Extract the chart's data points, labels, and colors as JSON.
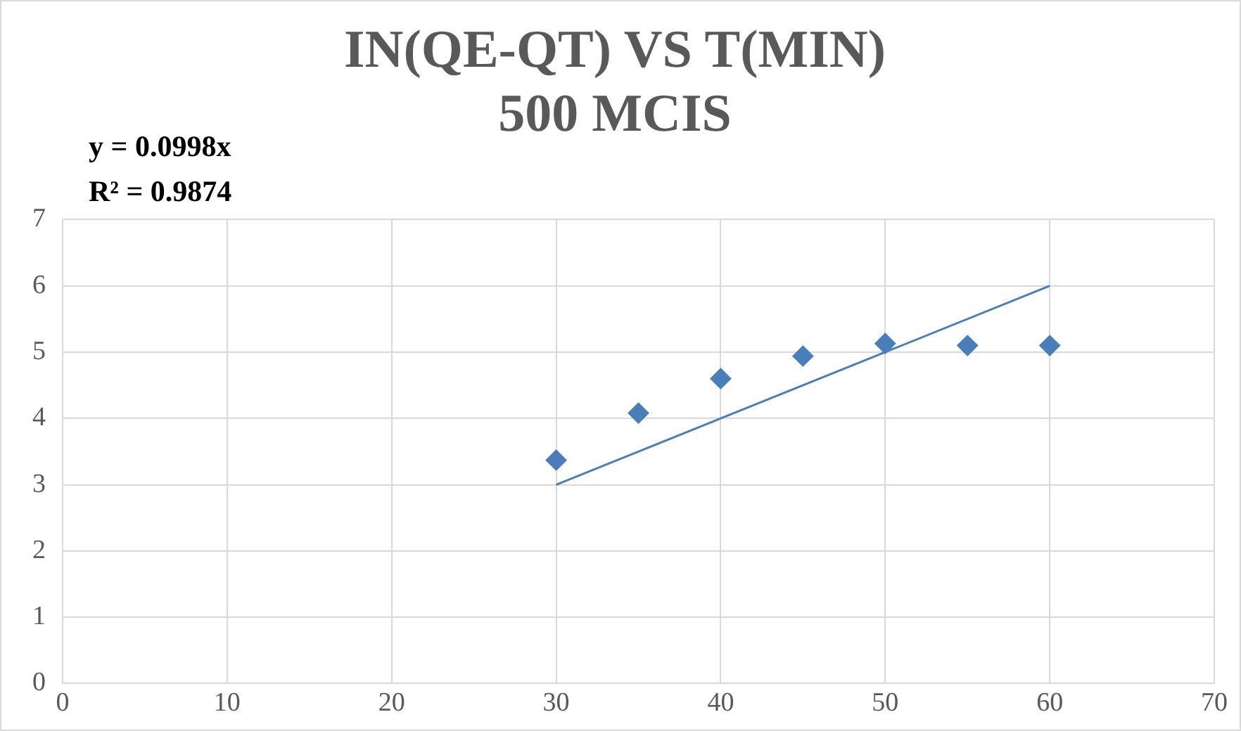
{
  "chart_data": {
    "type": "scatter",
    "title": "IN(QE-QT) VS T(MIN)",
    "subtitle": "500 MCIS",
    "annotations": [
      "y = 0.0998x",
      "R² = 0.9874"
    ],
    "series": [
      {
        "color": "#4a7ebb",
        "marker": "diamond",
        "x": [
          30,
          35,
          40,
          45,
          50,
          55,
          60
        ],
        "values": [
          3.37,
          4.08,
          4.6,
          4.94,
          5.13,
          5.1,
          5.1
        ]
      },
      {
        "type": "line",
        "color": "#4a7ebb",
        "marker": "none",
        "line_style": "solid",
        "x": [
          30,
          60
        ],
        "values": [
          3.0,
          6.0
        ]
      }
    ],
    "xlim": [
      0,
      70
    ],
    "xticks": [
      0,
      10,
      20,
      30,
      40,
      50,
      60,
      70
    ],
    "ylim": [
      0,
      7
    ],
    "yticks": [
      0,
      1,
      2,
      3,
      4,
      5,
      6,
      7
    ],
    "grid": true,
    "legend": false
  }
}
